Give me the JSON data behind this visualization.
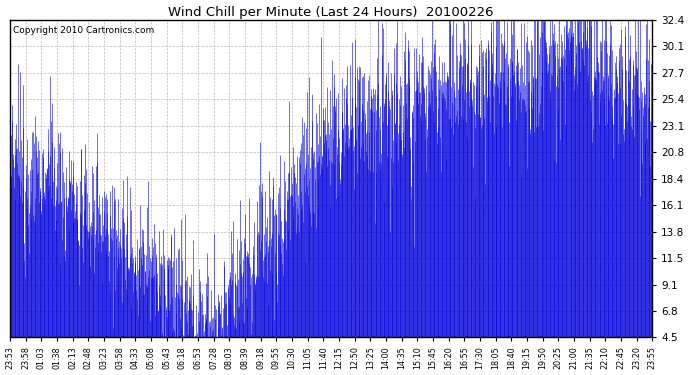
{
  "title": "Wind Chill per Minute (Last 24 Hours)  20100226",
  "copyright_text": "Copyright 2010 Cartronics.com",
  "line_color": "#0000dd",
  "background_color": "#ffffff",
  "plot_bg_color": "#ffffff",
  "grid_color": "#aaaaaa",
  "yticks": [
    4.5,
    6.8,
    9.1,
    11.5,
    13.8,
    16.1,
    18.4,
    20.8,
    23.1,
    25.4,
    27.7,
    30.1,
    32.4
  ],
  "ymin": 4.5,
  "ymax": 32.4,
  "x_labels": [
    "23:53",
    "23:58",
    "01:03",
    "01:38",
    "02:13",
    "02:48",
    "03:23",
    "03:58",
    "04:33",
    "05:08",
    "05:43",
    "06:18",
    "06:53",
    "07:28",
    "08:03",
    "08:39",
    "09:18",
    "09:55",
    "10:30",
    "11:05",
    "11:40",
    "12:15",
    "12:50",
    "13:25",
    "14:00",
    "14:35",
    "15:10",
    "15:45",
    "16:20",
    "16:55",
    "17:30",
    "18:05",
    "18:40",
    "19:15",
    "19:50",
    "20:25",
    "21:00",
    "21:35",
    "22:10",
    "22:45",
    "23:20",
    "23:55"
  ],
  "figsize": [
    6.9,
    3.75
  ],
  "dpi": 100
}
